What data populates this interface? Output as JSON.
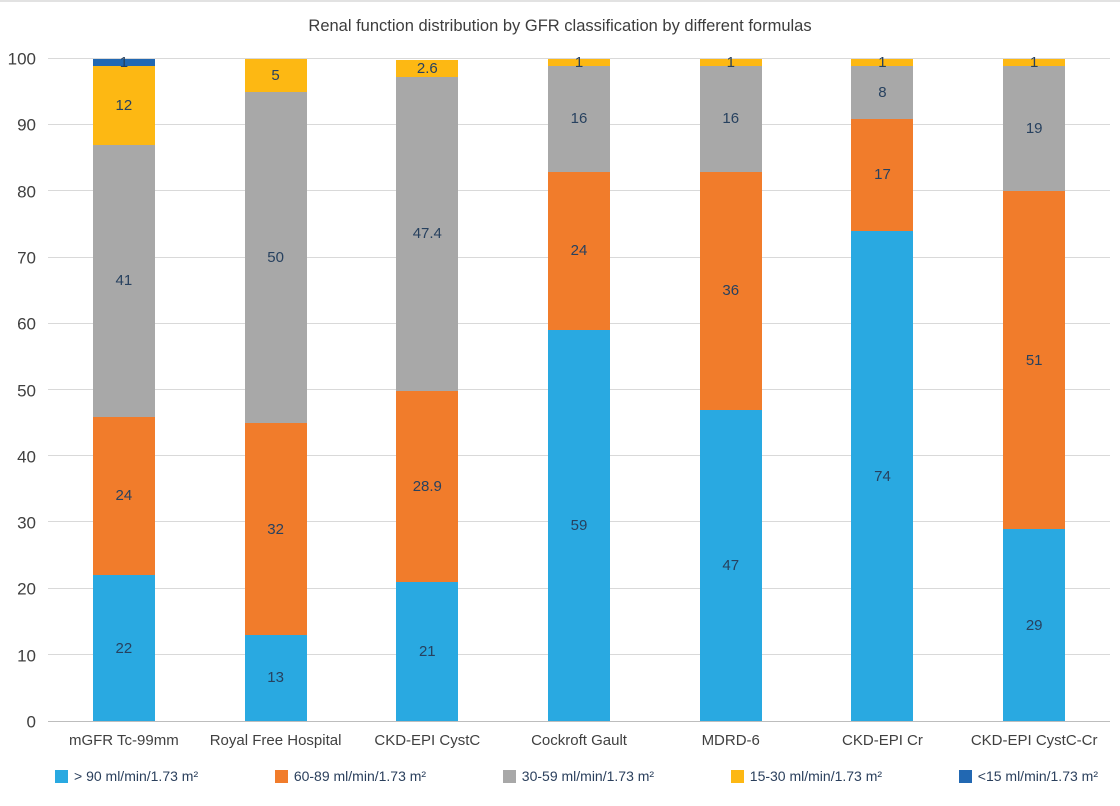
{
  "chart_data": {
    "type": "bar",
    "stacked": true,
    "title": "Renal function distribution by GFR classification by different formulas",
    "categories": [
      "mGFR Tc-99mm",
      "Royal Free Hospital",
      "CKD-EPI CystC",
      "Cockroft Gault",
      "MDRD-6",
      "CKD-EPI Cr",
      "CKD-EPI CystC-Cr"
    ],
    "series": [
      {
        "name": "> 90 ml/min/1.73 m²",
        "color": "#29a9e1",
        "values": [
          22,
          13,
          21,
          59,
          47,
          74,
          29
        ]
      },
      {
        "name": "60-89 ml/min/1.73 m²",
        "color": "#f17c2b",
        "values": [
          24,
          32,
          28.9,
          24,
          36,
          17,
          51
        ]
      },
      {
        "name": "30-59 ml/min/1.73 m²",
        "color": "#a8a8a8",
        "values": [
          41,
          50,
          47.4,
          16,
          16,
          8,
          19
        ]
      },
      {
        "name": "15-30 ml/min/1.73 m²",
        "color": "#fdb813",
        "values": [
          12,
          5,
          2.6,
          1,
          1,
          1,
          1
        ]
      },
      {
        "name": "<15 ml/min/1.73 m²",
        "color": "#2268b2",
        "values": [
          1,
          0,
          0,
          0,
          0,
          0,
          0
        ]
      }
    ],
    "xlabel": "",
    "ylabel": "",
    "ylim": [
      0,
      100
    ],
    "y_ticks": [
      0,
      10,
      20,
      30,
      40,
      50,
      60,
      70,
      80,
      90,
      100
    ],
    "grid": true,
    "legend_position": "bottom"
  }
}
